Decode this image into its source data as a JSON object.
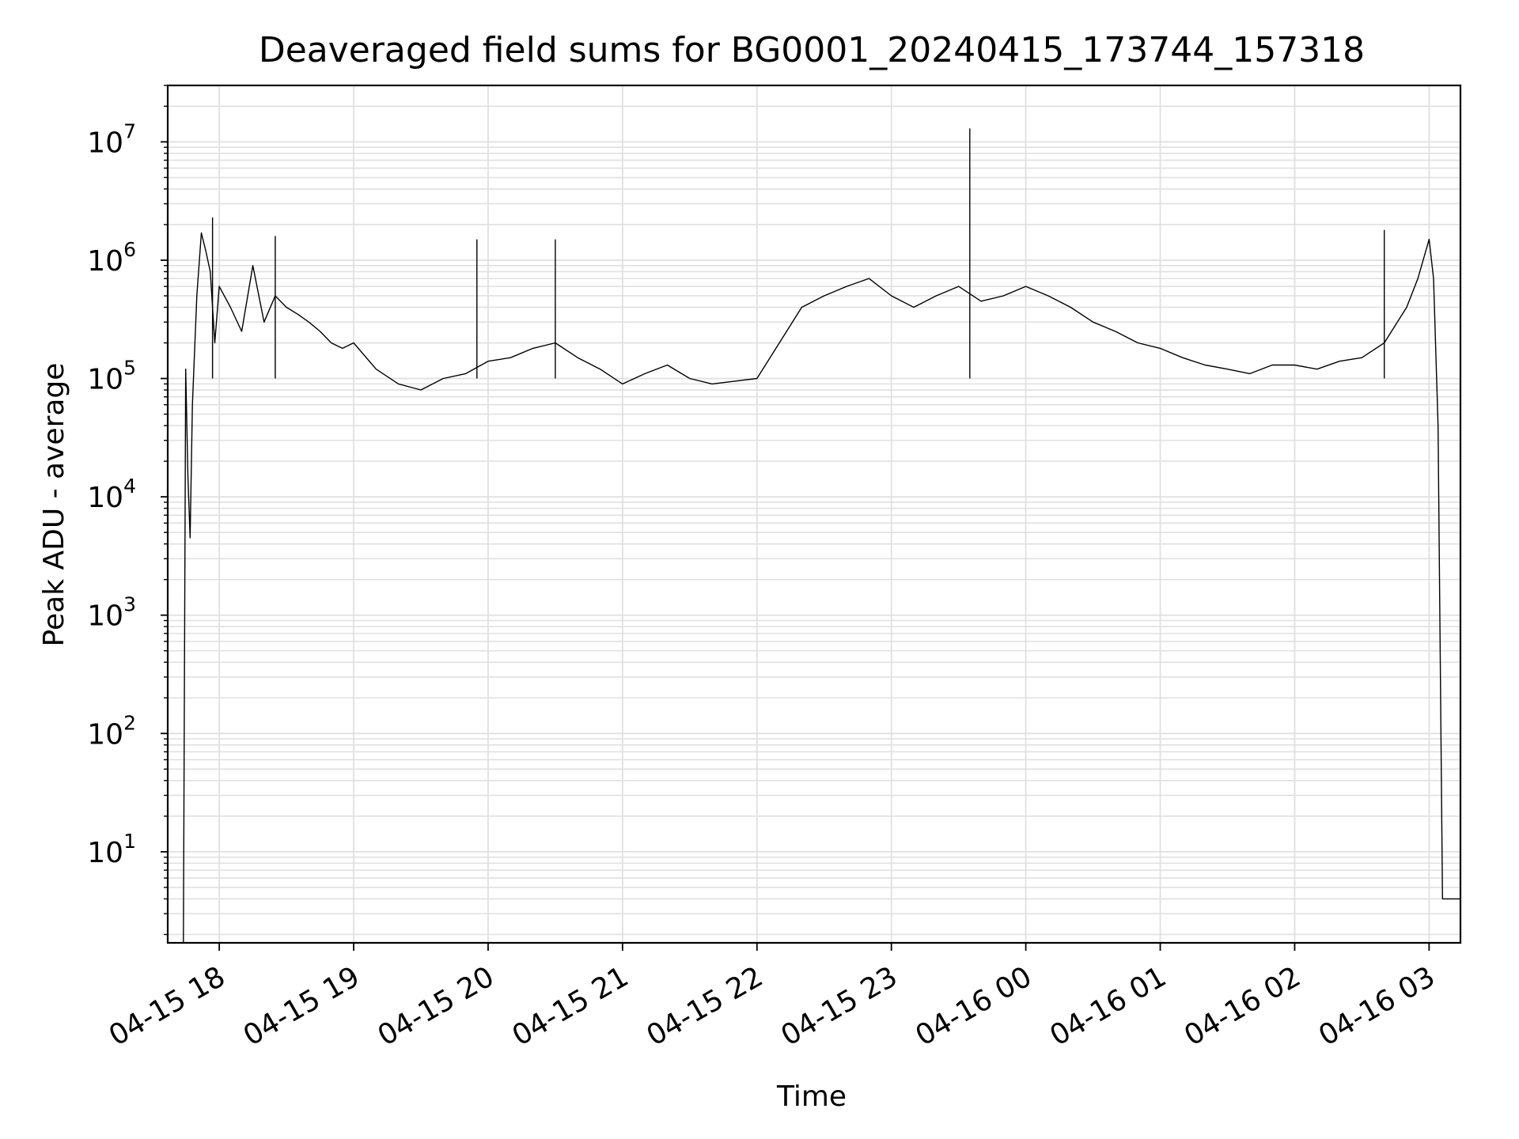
{
  "chart_data": {
    "type": "line",
    "title": "Deaveraged field sums for BG0001_20240415_173744_157318",
    "xlabel": "Time",
    "ylabel": "Peak ADU - average",
    "yscale": "log",
    "ylim": [
      1.7,
      30000000
    ],
    "xlim": [
      "2024-04-15 17:37",
      "2024-04-16 03:14"
    ],
    "grid": true,
    "line_color": "#000000",
    "grid_color": "#e0e0e0",
    "x_ticks": [
      {
        "label": "04-15 18",
        "time": "2024-04-15 18:00"
      },
      {
        "label": "04-15 19",
        "time": "2024-04-15 19:00"
      },
      {
        "label": "04-15 20",
        "time": "2024-04-15 20:00"
      },
      {
        "label": "04-15 21",
        "time": "2024-04-15 21:00"
      },
      {
        "label": "04-15 22",
        "time": "2024-04-15 22:00"
      },
      {
        "label": "04-15 23",
        "time": "2024-04-15 23:00"
      },
      {
        "label": "04-16 00",
        "time": "2024-04-16 00:00"
      },
      {
        "label": "04-16 01",
        "time": "2024-04-16 01:00"
      },
      {
        "label": "04-16 02",
        "time": "2024-04-16 02:00"
      },
      {
        "label": "04-16 03",
        "time": "2024-04-16 03:00"
      }
    ],
    "y_ticks": [
      {
        "base": "10",
        "exp": "1",
        "value": 10
      },
      {
        "base": "10",
        "exp": "2",
        "value": 100
      },
      {
        "base": "10",
        "exp": "3",
        "value": 1000
      },
      {
        "base": "10",
        "exp": "4",
        "value": 10000
      },
      {
        "base": "10",
        "exp": "5",
        "value": 100000
      },
      {
        "base": "10",
        "exp": "6",
        "value": 1000000
      },
      {
        "base": "10",
        "exp": "7",
        "value": 10000000
      }
    ],
    "series": [
      {
        "x": [
          "2024-04-15 17:44",
          "2024-04-15 17:45",
          "2024-04-15 17:46",
          "2024-04-15 17:47",
          "2024-04-15 17:48",
          "2024-04-15 17:50",
          "2024-04-15 17:52",
          "2024-04-15 17:54",
          "2024-04-15 17:56",
          "2024-04-15 17:58",
          "2024-04-15 18:00",
          "2024-04-15 18:05",
          "2024-04-15 18:10",
          "2024-04-15 18:15",
          "2024-04-15 18:20",
          "2024-04-15 18:25",
          "2024-04-15 18:30",
          "2024-04-15 18:35",
          "2024-04-15 18:40",
          "2024-04-15 18:45",
          "2024-04-15 18:50",
          "2024-04-15 18:55",
          "2024-04-15 19:00",
          "2024-04-15 19:10",
          "2024-04-15 19:20",
          "2024-04-15 19:30",
          "2024-04-15 19:40",
          "2024-04-15 19:50",
          "2024-04-15 20:00",
          "2024-04-15 20:10",
          "2024-04-15 20:20",
          "2024-04-15 20:30",
          "2024-04-15 20:40",
          "2024-04-15 20:50",
          "2024-04-15 21:00",
          "2024-04-15 21:10",
          "2024-04-15 21:20",
          "2024-04-15 21:30",
          "2024-04-15 21:40",
          "2024-04-15 21:50",
          "2024-04-15 22:00",
          "2024-04-15 22:10",
          "2024-04-15 22:20",
          "2024-04-15 22:30",
          "2024-04-15 22:40",
          "2024-04-15 22:50",
          "2024-04-15 23:00",
          "2024-04-15 23:10",
          "2024-04-15 23:20",
          "2024-04-15 23:30",
          "2024-04-15 23:40",
          "2024-04-15 23:50",
          "2024-04-16 00:00",
          "2024-04-16 00:10",
          "2024-04-16 00:20",
          "2024-04-16 00:30",
          "2024-04-16 00:40",
          "2024-04-16 00:50",
          "2024-04-16 01:00",
          "2024-04-16 01:10",
          "2024-04-16 01:20",
          "2024-04-16 01:30",
          "2024-04-16 01:40",
          "2024-04-16 01:50",
          "2024-04-16 02:00",
          "2024-04-16 02:10",
          "2024-04-16 02:20",
          "2024-04-16 02:30",
          "2024-04-16 02:40",
          "2024-04-16 02:50",
          "2024-04-16 02:55",
          "2024-04-16 03:00",
          "2024-04-16 03:02",
          "2024-04-16 03:04",
          "2024-04-16 03:06",
          "2024-04-16 03:08",
          "2024-04-16 03:10",
          "2024-04-16 03:12",
          "2024-04-16 03:14"
        ],
        "y": [
          1.7,
          120000,
          15000,
          4500,
          60000,
          500000,
          1700000,
          1200000,
          800000,
          200000,
          600000,
          400000,
          250000,
          900000,
          300000,
          500000,
          400000,
          350000,
          300000,
          250000,
          200000,
          180000,
          200000,
          120000,
          90000,
          80000,
          100000,
          110000,
          140000,
          150000,
          180000,
          200000,
          150000,
          120000,
          90000,
          110000,
          130000,
          100000,
          90000,
          95000,
          100000,
          200000,
          400000,
          500000,
          600000,
          700000,
          500000,
          400000,
          500000,
          600000,
          450000,
          500000,
          600000,
          500000,
          400000,
          300000,
          250000,
          200000,
          180000,
          150000,
          130000,
          120000,
          110000,
          130000,
          130000,
          120000,
          140000,
          150000,
          200000,
          400000,
          700000,
          1500000,
          700000,
          40000,
          4,
          4,
          4,
          4,
          4
        ]
      }
    ],
    "peaks": [
      {
        "time": "2024-04-15 23:35",
        "value": 13000000
      },
      {
        "time": "2024-04-15 17:57",
        "value": 2300000
      },
      {
        "time": "2024-04-16 02:40",
        "value": 1800000
      },
      {
        "time": "2024-04-15 18:25",
        "value": 1600000
      },
      {
        "time": "2024-04-15 19:55",
        "value": 1500000
      },
      {
        "time": "2024-04-15 20:30",
        "value": 1500000
      }
    ]
  }
}
